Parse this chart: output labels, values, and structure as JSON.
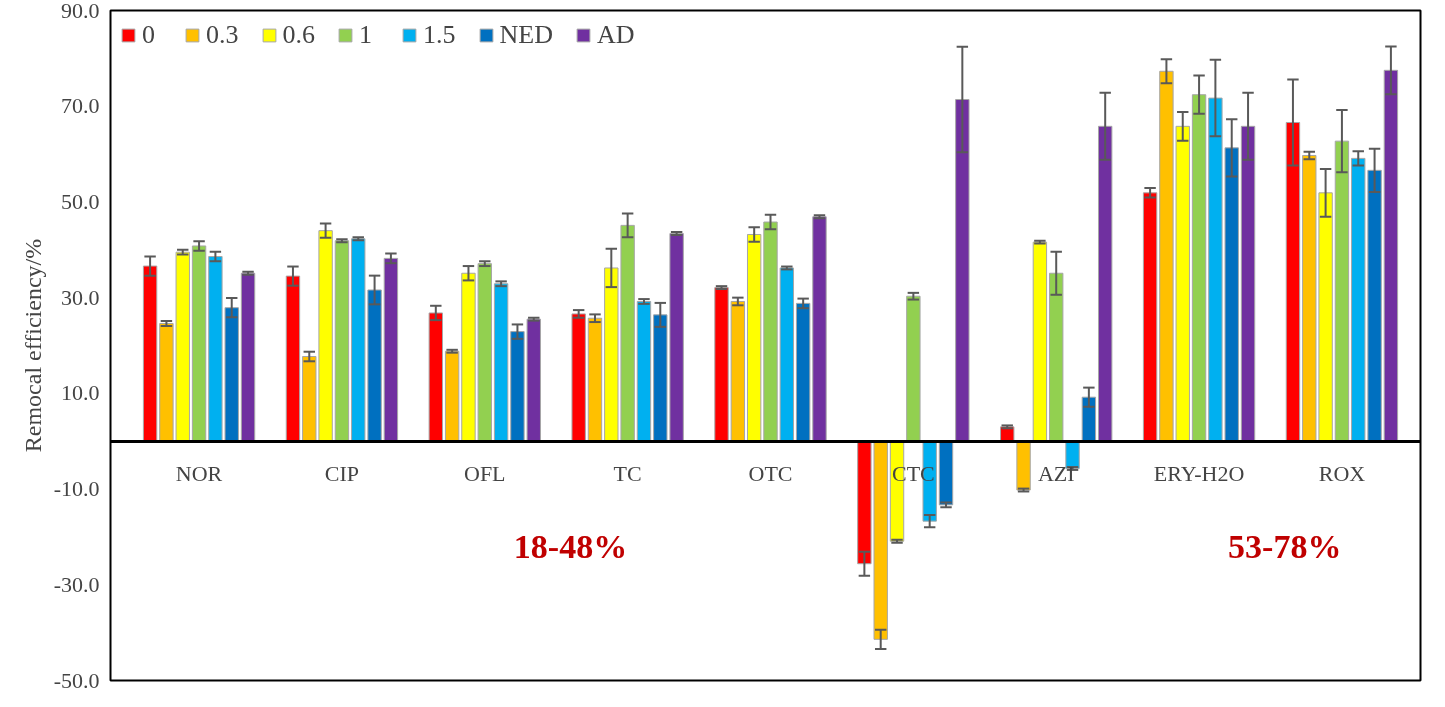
{
  "chart_data": {
    "type": "bar",
    "ylabel": "Remocal efficiency/%",
    "categories": [
      "NOR",
      "CIP",
      "OFL",
      "TC",
      "OTC",
      "CTC",
      "AZI",
      "ERY-H2O",
      "ROX"
    ],
    "series": [
      {
        "name": "0",
        "color": "#ff0000",
        "values": [
          36.6,
          34.5,
          26.8,
          26.6,
          32.1,
          -25.6,
          3.0,
          51.9,
          66.6
        ],
        "errors": [
          2,
          2,
          1.5,
          0.8,
          0.3,
          2.5,
          0.3,
          1,
          9
        ]
      },
      {
        "name": "0.3",
        "color": "#ffc000",
        "values": [
          24.6,
          17.7,
          18.8,
          25.7,
          29.2,
          -41.4,
          -10.2,
          77.3,
          59.7
        ],
        "errors": [
          0.5,
          1,
          0.3,
          0.8,
          0.8,
          2,
          0.3,
          2.5,
          0.8
        ]
      },
      {
        "name": "0.6",
        "color": "#ffff00",
        "values": [
          39.5,
          44.0,
          35.1,
          36.2,
          43.2,
          -20.9,
          41.6,
          65.8,
          51.9
        ],
        "errors": [
          0.5,
          1.5,
          1.5,
          4,
          1.5,
          0.3,
          0.3,
          3,
          5
        ]
      },
      {
        "name": "1",
        "color": "#92d050",
        "values": [
          40.8,
          41.9,
          37.1,
          45.1,
          45.8,
          30.3,
          35.1,
          72.4,
          62.7
        ],
        "errors": [
          1,
          0.3,
          0.5,
          2.5,
          1.5,
          0.7,
          4.5,
          4,
          6.5
        ]
      },
      {
        "name": "1.5",
        "color": "#00b0f0",
        "values": [
          38.6,
          42.3,
          32.9,
          29.2,
          36.2,
          -16.7,
          -5.7,
          71.7,
          59.1
        ],
        "errors": [
          1,
          0.3,
          0.5,
          0.5,
          0.3,
          1.3,
          0.3,
          8,
          1.5
        ]
      },
      {
        "name": "NED",
        "color": "#0070c0",
        "values": [
          27.9,
          31.6,
          22.9,
          26.4,
          28.8,
          -13.3,
          9.2,
          61.3,
          56.6
        ],
        "errors": [
          2,
          3,
          1.5,
          2.5,
          1,
          0.5,
          2,
          6,
          4.5
        ]
      },
      {
        "name": "AD",
        "color": "#7030a0",
        "values": [
          35.1,
          38.2,
          25.5,
          43.4,
          46.9,
          71.4,
          65.8,
          65.8,
          77.5
        ],
        "errors": [
          0.3,
          1,
          0.3,
          0.3,
          0.3,
          11,
          7,
          7,
          5
        ]
      }
    ],
    "ylim": [
      -50,
      90
    ],
    "yticks": [
      {
        "value": -50,
        "label": "-50.0"
      },
      {
        "value": -30,
        "label": "-30.0"
      },
      {
        "value": -10,
        "label": "-10.0"
      },
      {
        "value": 10,
        "label": "10.0"
      },
      {
        "value": 30,
        "label": "30.0"
      },
      {
        "value": 50,
        "label": "50.0"
      },
      {
        "value": 70,
        "label": "70.0"
      },
      {
        "value": 90,
        "label": "90.0"
      }
    ],
    "annotations": [
      "18-48%",
      "53-78%"
    ],
    "legend": "top left",
    "grid": false
  }
}
